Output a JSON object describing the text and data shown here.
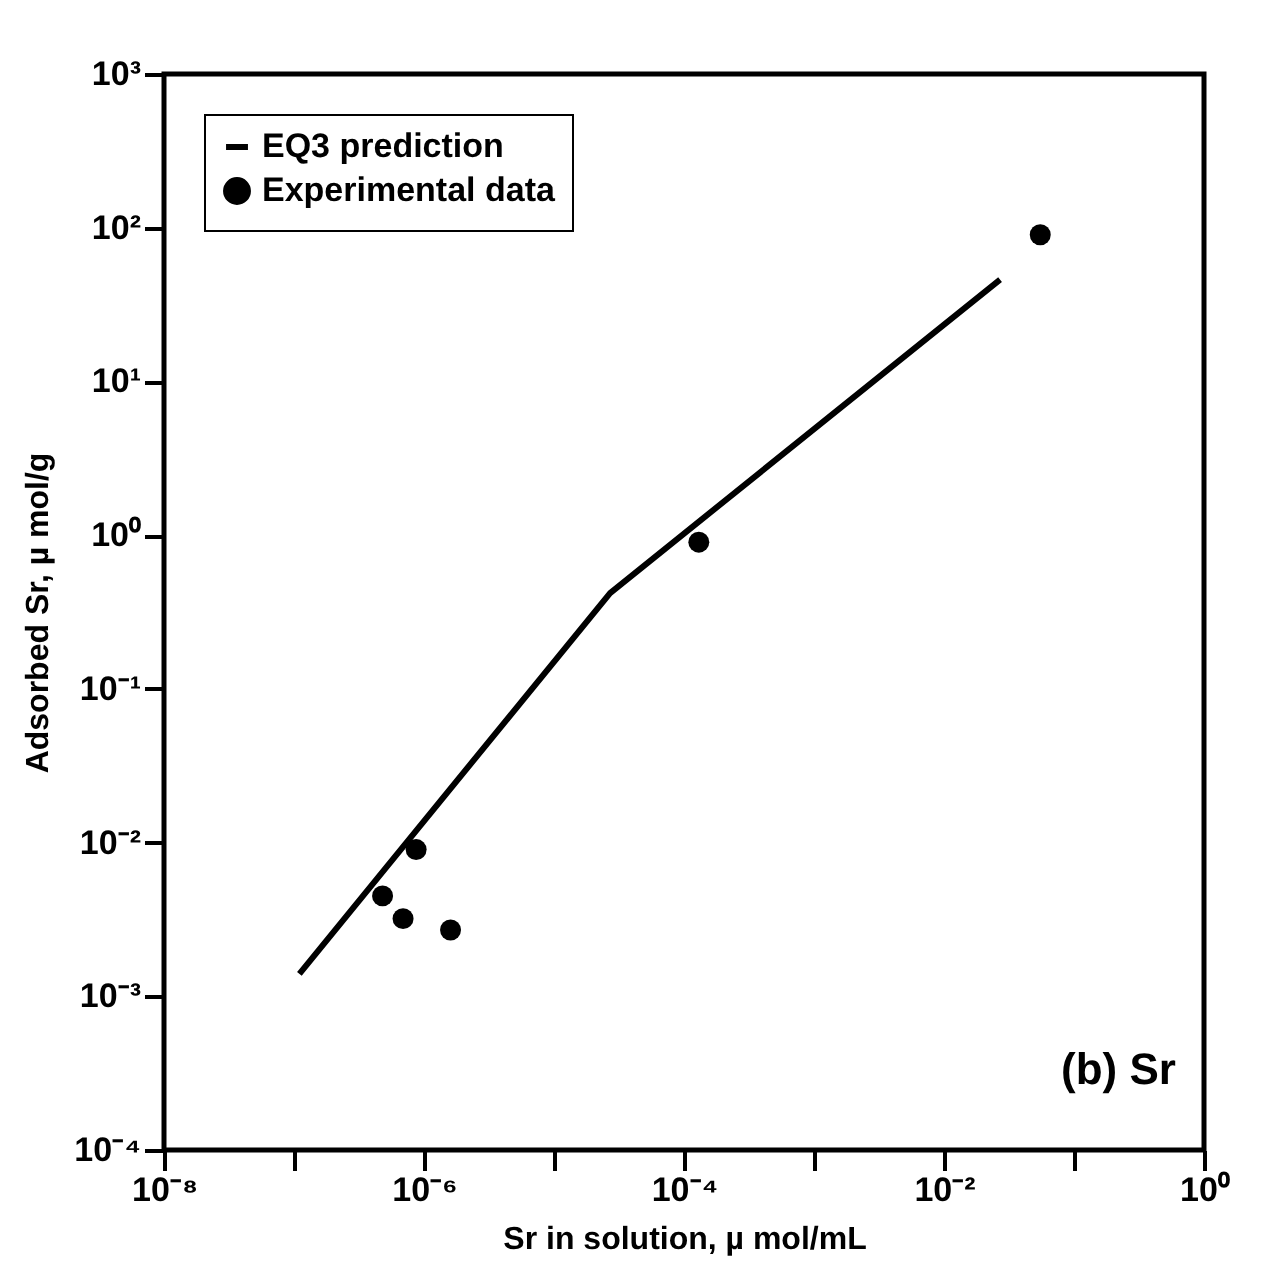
{
  "chart_data": {
    "type": "line",
    "xlabel": "Sr in solution, µ mol/mL",
    "ylabel": "Adsorbed Sr, µ mol/g",
    "annotations": [
      "(b) Sr"
    ],
    "log": "xy",
    "grid": false,
    "legend": "top left",
    "line_style": "solid",
    "xlim": [
      1e-08,
      1
    ],
    "ylim": [
      0.0001,
      1000
    ],
    "xticks": [
      {
        "value": 1e-08,
        "label": "10⁻⁸"
      },
      {
        "value": 1e-07,
        "label": null
      },
      {
        "value": 1e-06,
        "label": "10⁻⁶"
      },
      {
        "value": 1e-05,
        "label": null
      },
      {
        "value": 0.0001,
        "label": "10⁻⁴"
      },
      {
        "value": 0.001,
        "label": null
      },
      {
        "value": 0.01,
        "label": "10⁻²"
      },
      {
        "value": 0.1,
        "label": null
      },
      {
        "value": 1,
        "label": "10⁰"
      }
    ],
    "yticks": [
      {
        "value": 0.0001,
        "label": "10⁻⁴"
      },
      {
        "value": 0.001,
        "label": "10⁻³"
      },
      {
        "value": 0.01,
        "label": "10⁻²"
      },
      {
        "value": 0.1,
        "label": "10⁻¹"
      },
      {
        "value": 1,
        "label": "10⁰"
      },
      {
        "value": 10,
        "label": "10¹"
      },
      {
        "value": 100,
        "label": "10²"
      },
      {
        "value": 1000,
        "label": "10³"
      }
    ],
    "series": [
      {
        "name": "EQ3 prediction",
        "color": "#000000",
        "x": [
          1.1e-07,
          2.7e-05,
          0.027
        ],
        "values": [
          0.0014,
          0.42,
          46
        ]
      },
      {
        "name": "Experimental data",
        "type": "scatter",
        "marker": "circle",
        "color": "#000000",
        "x": [
          0.055,
          0.00013,
          8.7e-07,
          4.8e-07,
          6.9e-07,
          1.6e-06
        ],
        "values": [
          90,
          0.9,
          0.009,
          0.0045,
          0.0032,
          0.0027
        ]
      }
    ]
  }
}
